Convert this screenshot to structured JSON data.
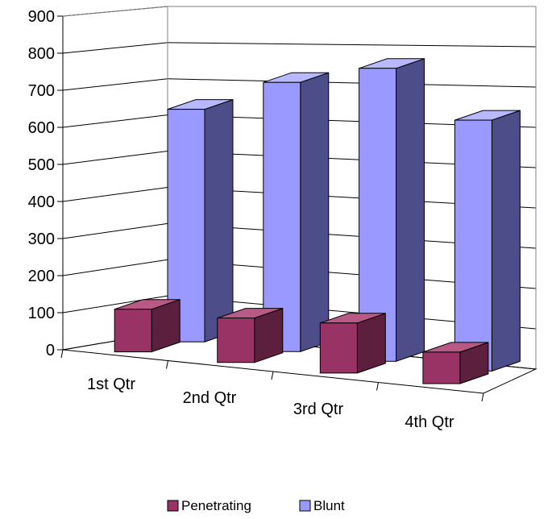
{
  "colors": {
    "penetrating_front": "#993366",
    "penetrating_side": "#5c1f3d",
    "penetrating_top": "#b85a85",
    "blunt_front": "#9999ff",
    "blunt_side": "#4d4d8a",
    "blunt_top": "#b8b8ff",
    "grid": "#000000",
    "wall": "#808080"
  },
  "chart_data": {
    "type": "bar",
    "style": "3d-clustered-column",
    "categories": [
      "1st Qtr",
      "2nd Qtr",
      "3rd Qtr",
      "4th Qtr"
    ],
    "series": [
      {
        "name": "Penetrating",
        "values": [
          115,
          120,
          135,
          85
        ]
      },
      {
        "name": "Blunt",
        "values": [
          635,
          735,
          800,
          685
        ]
      }
    ],
    "yticks": [
      0,
      100,
      200,
      300,
      400,
      500,
      600,
      700,
      800,
      900
    ],
    "ylim": [
      0,
      900
    ],
    "grid": true,
    "legend_position": "bottom"
  }
}
